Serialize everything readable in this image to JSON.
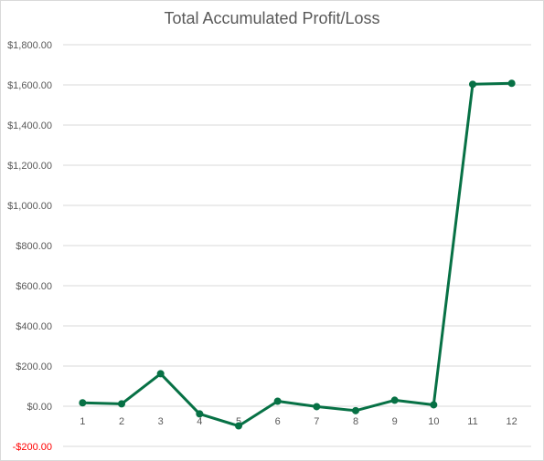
{
  "chart_data": {
    "type": "line",
    "title": "Total Accumulated Profit/Loss",
    "xlabel": "",
    "ylabel": "",
    "categories": [
      "1",
      "2",
      "3",
      "4",
      "5",
      "6",
      "7",
      "8",
      "9",
      "10",
      "11",
      "12"
    ],
    "series": [
      {
        "values": [
          17,
          12,
          162,
          -38,
          -98,
          25,
          -2,
          -22,
          30,
          7,
          1603,
          1608
        ],
        "color": "#077145"
      }
    ],
    "ylim": [
      -200,
      1800
    ],
    "y_ticks": [
      {
        "value": 1800,
        "label": "$1,800.00"
      },
      {
        "value": 1600,
        "label": "$1,600.00"
      },
      {
        "value": 1400,
        "label": "$1,400.00"
      },
      {
        "value": 1200,
        "label": "$1,200.00"
      },
      {
        "value": 1000,
        "label": "$1,000.00"
      },
      {
        "value": 800,
        "label": "$800.00"
      },
      {
        "value": 600,
        "label": "$600.00"
      },
      {
        "value": 400,
        "label": "$400.00"
      },
      {
        "value": 200,
        "label": "$200.00"
      },
      {
        "value": 0,
        "label": "$0.00"
      },
      {
        "value": -200,
        "label": "-$200.00"
      }
    ],
    "negative_label_color": "#ff0000",
    "gridline_color": "#d9d9d9",
    "grid": true,
    "legend": "none"
  }
}
